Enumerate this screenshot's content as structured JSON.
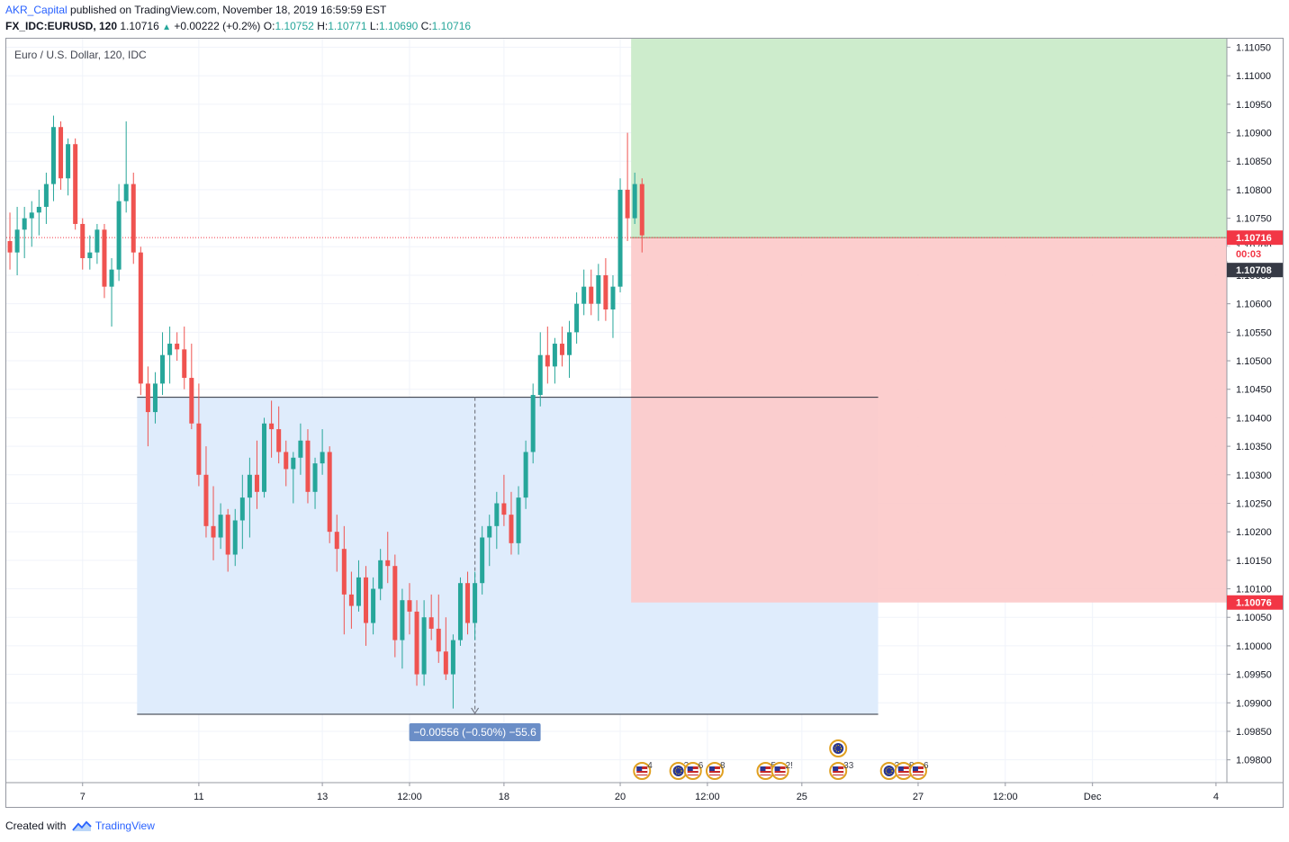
{
  "header": {
    "author": "AKR_Capital",
    "published": "published on TradingView.com, November 18, 2019 16:59:59 EST",
    "symbol": "FX_IDC:EURUSD, 120",
    "last": "1.10716",
    "change": "+0.00222 (+0.2%)",
    "o_label": "O:",
    "o_value": "1.10752",
    "h_label": "H:",
    "h_value": "1.10771",
    "l_label": "L:",
    "l_value": "1.10690",
    "c_label": "C:",
    "c_value": "1.10716"
  },
  "footer": {
    "created_with": "Created with",
    "brand": "TradingView"
  },
  "colors": {
    "up": "#26a69a",
    "down": "#ef5350",
    "profit_zone": "#cdeccc",
    "stop_zone": "#fccaca",
    "range_zone": "#dfecfc",
    "price_label": "#f23645",
    "measure_label": "#6b8ec7"
  },
  "chart_data": {
    "type": "candlestick",
    "title": "Euro / U.S. Dollar, 120, IDC",
    "timeframe": "120",
    "ylim": [
      1.0976,
      1.11065
    ],
    "y_ticks": [
      "1.11050",
      "1.11000",
      "1.10950",
      "1.10900",
      "1.10850",
      "1.10800",
      "1.10750",
      "1.10700",
      "1.10650",
      "1.10600",
      "1.10550",
      "1.10500",
      "1.10450",
      "1.10400",
      "1.10350",
      "1.10300",
      "1.10250",
      "1.10200",
      "1.10150",
      "1.10100",
      "1.10050",
      "1.10000",
      "1.09950",
      "1.09900",
      "1.09850",
      "1.09800"
    ],
    "x_ticks": [
      {
        "label": "7",
        "bar": 10
      },
      {
        "label": "11",
        "bar": 26
      },
      {
        "label": "13",
        "bar": 43
      },
      {
        "label": "12:00",
        "bar": 55
      },
      {
        "label": "18",
        "bar": 68
      },
      {
        "label": "20",
        "bar": 84
      },
      {
        "label": "12:00",
        "bar": 96
      },
      {
        "label": "25",
        "bar": 109
      },
      {
        "label": "27",
        "bar": 125
      },
      {
        "label": "12:00",
        "bar": 137
      },
      {
        "label": "Dec",
        "bar": 149
      },
      {
        "label": "4",
        "bar": 166
      }
    ],
    "bars_total": 168,
    "candles": [
      [
        1.1071,
        1.1076,
        1.1066,
        1.1069
      ],
      [
        1.1069,
        1.1077,
        1.1065,
        1.1073
      ],
      [
        1.1073,
        1.1077,
        1.1068,
        1.1075
      ],
      [
        1.1075,
        1.1078,
        1.107,
        1.1076
      ],
      [
        1.1076,
        1.108,
        1.1072,
        1.1077
      ],
      [
        1.1077,
        1.1083,
        1.1074,
        1.1081
      ],
      [
        1.1081,
        1.1093,
        1.1078,
        1.1091
      ],
      [
        1.1091,
        1.1092,
        1.108,
        1.1082
      ],
      [
        1.1082,
        1.1089,
        1.1079,
        1.1088
      ],
      [
        1.1088,
        1.1089,
        1.1073,
        1.1074
      ],
      [
        1.1074,
        1.1075,
        1.1066,
        1.1068
      ],
      [
        1.1068,
        1.1072,
        1.1066,
        1.1069
      ],
      [
        1.1069,
        1.1074,
        1.1067,
        1.1073
      ],
      [
        1.1073,
        1.1074,
        1.1061,
        1.1063
      ],
      [
        1.1063,
        1.1068,
        1.1056,
        1.1066
      ],
      [
        1.1066,
        1.1081,
        1.1064,
        1.1078
      ],
      [
        1.1078,
        1.1092,
        1.1076,
        1.1081
      ],
      [
        1.1081,
        1.1083,
        1.1067,
        1.1069
      ],
      [
        1.1069,
        1.107,
        1.1044,
        1.1046
      ],
      [
        1.1046,
        1.1049,
        1.1035,
        1.1041
      ],
      [
        1.1041,
        1.1048,
        1.1039,
        1.1046
      ],
      [
        1.1046,
        1.1055,
        1.1044,
        1.1051
      ],
      [
        1.1051,
        1.1056,
        1.1046,
        1.1053
      ],
      [
        1.1053,
        1.1055,
        1.105,
        1.1052
      ],
      [
        1.1052,
        1.1056,
        1.1045,
        1.1047
      ],
      [
        1.1047,
        1.1053,
        1.1038,
        1.1039
      ],
      [
        1.1039,
        1.1046,
        1.1028,
        1.103
      ],
      [
        1.103,
        1.1035,
        1.1019,
        1.1021
      ],
      [
        1.1021,
        1.1028,
        1.1015,
        1.1019
      ],
      [
        1.1019,
        1.1025,
        1.1017,
        1.1023
      ],
      [
        1.1023,
        1.1024,
        1.1013,
        1.1016
      ],
      [
        1.1016,
        1.1024,
        1.1014,
        1.1022
      ],
      [
        1.1022,
        1.103,
        1.1017,
        1.1026
      ],
      [
        1.1026,
        1.1033,
        1.1019,
        1.103
      ],
      [
        1.103,
        1.1036,
        1.1024,
        1.1027
      ],
      [
        1.1027,
        1.104,
        1.1026,
        1.1039
      ],
      [
        1.1039,
        1.1043,
        1.1033,
        1.1038
      ],
      [
        1.1038,
        1.1042,
        1.1032,
        1.1034
      ],
      [
        1.1034,
        1.1036,
        1.1028,
        1.1031
      ],
      [
        1.1031,
        1.1034,
        1.1025,
        1.1033
      ],
      [
        1.1033,
        1.1039,
        1.103,
        1.1036
      ],
      [
        1.1036,
        1.1038,
        1.1025,
        1.1027
      ],
      [
        1.1027,
        1.1033,
        1.1024,
        1.1032
      ],
      [
        1.1032,
        1.1038,
        1.103,
        1.1034
      ],
      [
        1.1034,
        1.1035,
        1.1018,
        1.102
      ],
      [
        1.102,
        1.1023,
        1.1013,
        1.1017
      ],
      [
        1.1017,
        1.1021,
        1.1002,
        1.1009
      ],
      [
        1.1009,
        1.1013,
        1.1003,
        1.1007
      ],
      [
        1.1007,
        1.1015,
        1.1006,
        1.1012
      ],
      [
        1.1012,
        1.1014,
        1.1,
        1.1004
      ],
      [
        1.1004,
        1.1012,
        1.1002,
        1.101
      ],
      [
        1.101,
        1.1017,
        1.1008,
        1.1015
      ],
      [
        1.1015,
        1.102,
        1.1011,
        1.1014
      ],
      [
        1.1014,
        1.1016,
        1.0998,
        1.1001
      ],
      [
        1.1001,
        1.101,
        1.0996,
        1.1008
      ],
      [
        1.1008,
        1.1011,
        1.1002,
        1.1006
      ],
      [
        1.1006,
        1.1008,
        1.0993,
        1.0995
      ],
      [
        1.0995,
        1.1008,
        1.0993,
        1.1005
      ],
      [
        1.1005,
        1.1009,
        1.1001,
        1.1003
      ],
      [
        1.1003,
        1.1009,
        1.0997,
        1.0999
      ],
      [
        1.0999,
        1.1005,
        1.0994,
        1.0995
      ],
      [
        1.0995,
        1.1002,
        1.0989,
        1.1001
      ],
      [
        1.1001,
        1.1012,
        1.1,
        1.1011
      ],
      [
        1.1011,
        1.1013,
        1.1002,
        1.1004
      ],
      [
        1.1004,
        1.1013,
        1.1001,
        1.1011
      ],
      [
        1.1011,
        1.1021,
        1.1009,
        1.1019
      ],
      [
        1.1019,
        1.1023,
        1.1014,
        1.1021
      ],
      [
        1.1021,
        1.1027,
        1.1017,
        1.1025
      ],
      [
        1.1025,
        1.103,
        1.1021,
        1.1023
      ],
      [
        1.1023,
        1.1027,
        1.1016,
        1.1018
      ],
      [
        1.1018,
        1.1028,
        1.1016,
        1.1026
      ],
      [
        1.1026,
        1.1036,
        1.1024,
        1.1034
      ],
      [
        1.1034,
        1.1046,
        1.1032,
        1.1044
      ],
      [
        1.1044,
        1.1055,
        1.1042,
        1.1051
      ],
      [
        1.1051,
        1.1056,
        1.1046,
        1.1049
      ],
      [
        1.1049,
        1.1054,
        1.1046,
        1.1053
      ],
      [
        1.1053,
        1.1056,
        1.1049,
        1.1051
      ],
      [
        1.1051,
        1.1057,
        1.1047,
        1.1055
      ],
      [
        1.1055,
        1.1062,
        1.1053,
        1.106
      ],
      [
        1.106,
        1.1066,
        1.1058,
        1.1063
      ],
      [
        1.1063,
        1.1066,
        1.1058,
        1.106
      ],
      [
        1.106,
        1.1067,
        1.1057,
        1.1065
      ],
      [
        1.1065,
        1.1068,
        1.1057,
        1.1059
      ],
      [
        1.1059,
        1.1065,
        1.1054,
        1.1063
      ],
      [
        1.1063,
        1.1082,
        1.1062,
        1.108
      ],
      [
        1.108,
        1.109,
        1.1071,
        1.1075
      ],
      [
        1.1075,
        1.1083,
        1.1074,
        1.1081
      ],
      [
        1.1081,
        1.1082,
        1.1069,
        1.1072
      ]
    ],
    "candle_bar_offset": 0,
    "entry_price": 1.10716,
    "current_price": 1.10716,
    "prev_close": 1.10708,
    "countdown": "00:03",
    "position": {
      "entry": 1.10716,
      "target": 1.11065,
      "stop": 1.10076,
      "bar_from": 86,
      "bar_to": 168
    },
    "range_measure": {
      "top": 1.10436,
      "bottom": 1.0988,
      "bar_from": 18,
      "bar_to": 120,
      "label": "−0.00556 (−0.50%) −55.6"
    },
    "price_labels": {
      "current": "1.10716",
      "countdown": "00:03",
      "prev": "1.10708",
      "stop": "1.10076"
    },
    "events": [
      {
        "bar": 87,
        "flag": "us",
        "text": "4"
      },
      {
        "bar": 92,
        "flag": "eu",
        "text": "2"
      },
      {
        "bar": 94,
        "flag": "us",
        "text": "6"
      },
      {
        "bar": 97,
        "flag": "us",
        "text": "8"
      },
      {
        "bar": 104,
        "flag": "us",
        "text": "5"
      },
      {
        "bar": 106,
        "flag": "us",
        "text": "2!"
      },
      {
        "bar": 114,
        "flag": "us",
        "text": "33"
      },
      {
        "bar": 121,
        "flag": "eu",
        "text": "3"
      },
      {
        "bar": 123,
        "flag": "us",
        "text": "8"
      },
      {
        "bar": 125,
        "flag": "us",
        "text": "6"
      }
    ],
    "event_top": {
      "bar": 114,
      "flag": "eu"
    }
  }
}
